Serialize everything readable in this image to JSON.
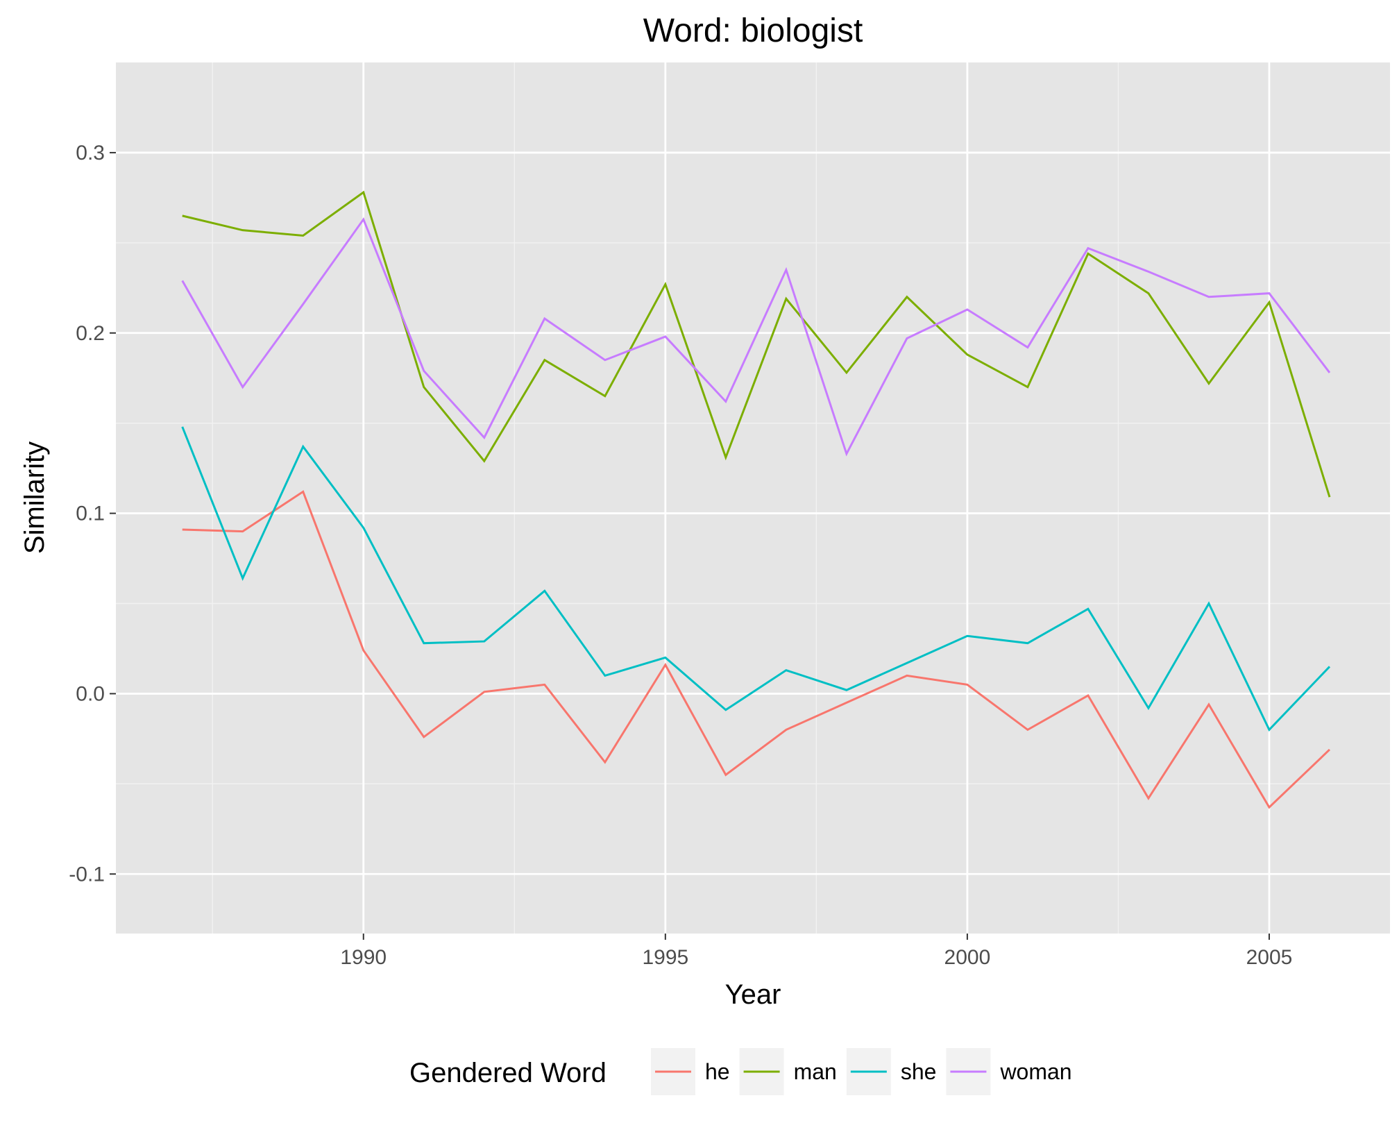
{
  "chart_data": {
    "type": "line",
    "title": "Word: biologist",
    "xlabel": "Year",
    "ylabel": "Similarity",
    "xlim": [
      1985.9,
      2007
    ],
    "ylim": [
      -0.133,
      0.35
    ],
    "x_ticks": [
      1990,
      1995,
      2000,
      2005
    ],
    "x_minor_ticks": [
      1987.5,
      1992.5,
      1997.5,
      2002.5
    ],
    "y_ticks": [
      -0.1,
      0.0,
      0.1,
      0.2,
      0.3
    ],
    "y_tick_labels": [
      "-0.1",
      "0.0",
      "0.1",
      "0.2",
      "0.3"
    ],
    "y_minor_ticks": [
      -0.05,
      0.05,
      0.15,
      0.25
    ],
    "grid": true,
    "legend": {
      "title": "Gendered Word",
      "position": "bottom"
    },
    "x": [
      1987,
      1988,
      1989,
      1990,
      1991,
      1992,
      1993,
      1994,
      1995,
      1996,
      1997,
      1998,
      1999,
      2000,
      2001,
      2002,
      2003,
      2004,
      2005,
      2006
    ],
    "series": [
      {
        "name": "he",
        "color": "#F8766D",
        "values": [
          0.091,
          0.09,
          0.112,
          0.024,
          -0.024,
          0.001,
          0.005,
          -0.038,
          0.016,
          -0.045,
          -0.02,
          -0.005,
          0.01,
          0.005,
          -0.02,
          -0.001,
          -0.058,
          -0.006,
          -0.063,
          -0.031
        ]
      },
      {
        "name": "man",
        "color": "#7CAE00",
        "values": [
          0.265,
          0.257,
          0.254,
          0.278,
          0.17,
          0.129,
          0.185,
          0.165,
          0.227,
          0.131,
          0.219,
          0.178,
          0.22,
          0.188,
          0.17,
          0.244,
          0.222,
          0.172,
          0.217,
          0.109
        ]
      },
      {
        "name": "she",
        "color": "#00BFC4",
        "values": [
          0.148,
          0.064,
          0.137,
          0.092,
          0.028,
          0.029,
          0.057,
          0.01,
          0.02,
          -0.009,
          0.013,
          0.002,
          0.017,
          0.032,
          0.028,
          0.047,
          -0.008,
          0.05,
          -0.02,
          0.015
        ]
      },
      {
        "name": "woman",
        "color": "#C77CFF",
        "values": [
          0.229,
          0.17,
          0.216,
          0.263,
          0.179,
          0.142,
          0.208,
          0.185,
          0.198,
          0.162,
          0.235,
          0.133,
          0.197,
          0.213,
          0.192,
          0.247,
          0.234,
          0.22,
          0.222,
          0.178
        ]
      }
    ]
  }
}
